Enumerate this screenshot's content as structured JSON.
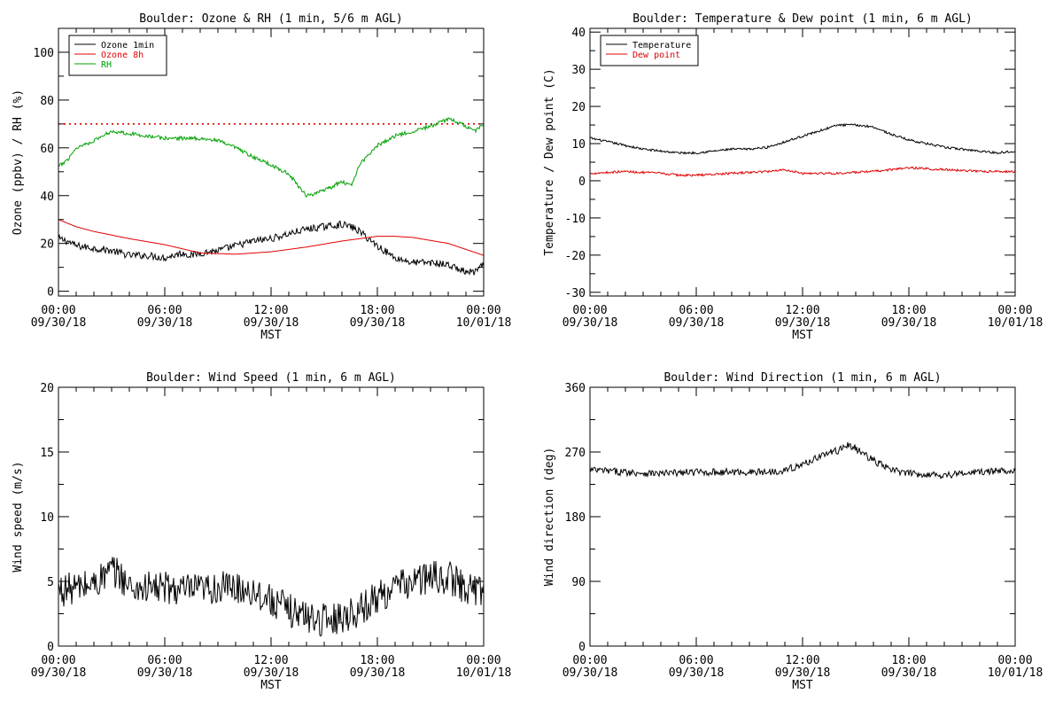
{
  "colors": {
    "black": "#000000",
    "red": "#e00000",
    "green": "#00a000"
  },
  "chart_data": [
    {
      "type": "line",
      "title": "Boulder: Ozone & RH (1 min, 5/6 m AGL)",
      "ylabel": "Ozone (ppbv) / RH (%)",
      "xlabel": "MST",
      "xlim": [
        0,
        24
      ],
      "ylim": [
        -2,
        110
      ],
      "yticks": [
        0,
        20,
        40,
        60,
        80,
        100
      ],
      "xticks": [
        {
          "time": "00:00",
          "date": "09/30/18"
        },
        {
          "time": "06:00",
          "date": "09/30/18"
        },
        {
          "time": "12:00",
          "date": "09/30/18"
        },
        {
          "time": "18:00",
          "date": "09/30/18"
        },
        {
          "time": "00:00",
          "date": "10/01/18"
        }
      ],
      "reference_line": {
        "y": 70,
        "style": "dotted",
        "color": "#e00000"
      },
      "legend_position": "top-left",
      "series": [
        {
          "name": "Ozone 1min",
          "color": "#000000",
          "noise": 1.5,
          "x": [
            0,
            0.5,
            1,
            2,
            3,
            4,
            5,
            6,
            7,
            7.5,
            8,
            9,
            10,
            11,
            12,
            13,
            14,
            15,
            16,
            16.5,
            17,
            18,
            19,
            20,
            21,
            22,
            23,
            23.5,
            24
          ],
          "y": [
            22,
            21,
            19,
            18,
            17,
            15,
            15,
            14,
            16,
            15,
            16,
            17,
            19,
            21,
            22,
            24,
            26,
            27,
            28,
            27,
            25,
            19,
            14,
            12,
            12,
            11,
            8,
            8,
            11
          ]
        },
        {
          "name": "Ozone 8h",
          "color": "#e00000",
          "noise": 0,
          "x": [
            0,
            1,
            2,
            4,
            6,
            8,
            10,
            12,
            14,
            16,
            18,
            19,
            20,
            22,
            24
          ],
          "y": [
            30,
            27,
            25,
            22,
            19.5,
            16,
            15.5,
            16.5,
            18.5,
            21,
            23,
            23,
            22.5,
            20,
            15
          ]
        },
        {
          "name": "RH",
          "color": "#00a000",
          "noise": 0.8,
          "x": [
            0,
            0.5,
            1,
            2,
            3,
            4,
            5,
            6,
            7,
            8,
            9,
            10,
            11,
            12,
            13,
            14,
            15,
            16,
            16.5,
            17,
            18,
            19,
            20,
            21,
            22,
            22.5,
            23,
            23.5,
            24
          ],
          "y": [
            52,
            55,
            60,
            63,
            67,
            66,
            65,
            64,
            64,
            64,
            63,
            60,
            56,
            53,
            49,
            40,
            42,
            46,
            44,
            53,
            61,
            65,
            67,
            69,
            72,
            71,
            69,
            67,
            70
          ]
        }
      ]
    },
    {
      "type": "line",
      "title": "Boulder: Temperature & Dew point (1 min, 6 m AGL)",
      "ylabel": "Temperature / Dew point (C)",
      "xlabel": "MST",
      "xlim": [
        0,
        24
      ],
      "ylim": [
        -31,
        41
      ],
      "yticks": [
        -30,
        -20,
        -10,
        0,
        10,
        20,
        30,
        40
      ],
      "xticks": [
        {
          "time": "00:00",
          "date": "09/30/18"
        },
        {
          "time": "06:00",
          "date": "09/30/18"
        },
        {
          "time": "12:00",
          "date": "09/30/18"
        },
        {
          "time": "18:00",
          "date": "09/30/18"
        },
        {
          "time": "00:00",
          "date": "10/01/18"
        }
      ],
      "legend_position": "top-left",
      "series": [
        {
          "name": "Temperature",
          "color": "#000000",
          "noise": 0.3,
          "x": [
            0,
            1,
            2,
            3,
            4,
            5,
            6,
            7,
            8,
            9,
            10,
            11,
            12,
            13,
            14,
            15,
            16,
            17,
            18,
            19,
            20,
            21,
            22,
            23,
            24
          ],
          "y": [
            11.5,
            10.5,
            9.5,
            8.5,
            8,
            7.5,
            7.5,
            8,
            8.5,
            8.5,
            9,
            10.5,
            12,
            13.5,
            15,
            15,
            14.5,
            12.5,
            11,
            10,
            9,
            8.5,
            8,
            7.5,
            8
          ]
        },
        {
          "name": "Dew point",
          "color": "#e00000",
          "noise": 0.3,
          "x": [
            0,
            2,
            4,
            5,
            6,
            8,
            10,
            11,
            12,
            14,
            16,
            18,
            20,
            22,
            24
          ],
          "y": [
            2,
            2.5,
            2,
            1.5,
            1.5,
            2,
            2.5,
            3,
            2,
            2,
            2.5,
            3.5,
            3,
            2.5,
            2.5
          ]
        }
      ]
    },
    {
      "type": "line",
      "title": "Boulder: Wind Speed (1 min, 6 m AGL)",
      "ylabel": "Wind speed (m/s)",
      "xlabel": "MST",
      "xlim": [
        0,
        24
      ],
      "ylim": [
        0,
        20
      ],
      "yticks": [
        0,
        5,
        10,
        15,
        20
      ],
      "xticks": [
        {
          "time": "00:00",
          "date": "09/30/18"
        },
        {
          "time": "06:00",
          "date": "09/30/18"
        },
        {
          "time": "12:00",
          "date": "09/30/18"
        },
        {
          "time": "18:00",
          "date": "09/30/18"
        },
        {
          "time": "00:00",
          "date": "10/01/18"
        }
      ],
      "series": [
        {
          "name": "",
          "color": "#000000",
          "noise": 1.3,
          "x": [
            0,
            1,
            2,
            3,
            3.5,
            4,
            5,
            6,
            7,
            8,
            9,
            10,
            11,
            12,
            13,
            14,
            15,
            16,
            17,
            18,
            19,
            20,
            21,
            22,
            23,
            24
          ],
          "y": [
            4.3,
            4.5,
            4.8,
            5.8,
            5.5,
            4.5,
            4.5,
            4.5,
            4.3,
            4.3,
            4.5,
            4.5,
            4.3,
            3.5,
            2.8,
            2.3,
            2,
            2.3,
            2.8,
            3.8,
            4.5,
            5,
            5.3,
            5.3,
            4.5,
            4.3
          ]
        }
      ]
    },
    {
      "type": "line",
      "title": "Boulder: Wind Direction (1 min, 6 m AGL)",
      "ylabel": "Wind direction (deg)",
      "xlabel": "MST",
      "xlim": [
        0,
        24
      ],
      "ylim": [
        0,
        360
      ],
      "yticks": [
        0,
        90,
        180,
        270,
        360
      ],
      "xticks": [
        {
          "time": "00:00",
          "date": "09/30/18"
        },
        {
          "time": "06:00",
          "date": "09/30/18"
        },
        {
          "time": "12:00",
          "date": "09/30/18"
        },
        {
          "time": "18:00",
          "date": "09/30/18"
        },
        {
          "time": "00:00",
          "date": "10/01/18"
        }
      ],
      "series": [
        {
          "name": "",
          "color": "#000000",
          "noise": 5,
          "x": [
            0,
            2,
            4,
            6,
            8,
            10,
            11,
            12,
            13,
            14,
            14.5,
            15,
            16,
            17,
            18,
            20,
            22,
            24
          ],
          "y": [
            245,
            242,
            240,
            242,
            242,
            242,
            245,
            252,
            265,
            272,
            280,
            275,
            258,
            245,
            240,
            238,
            242,
            245
          ]
        }
      ]
    }
  ]
}
